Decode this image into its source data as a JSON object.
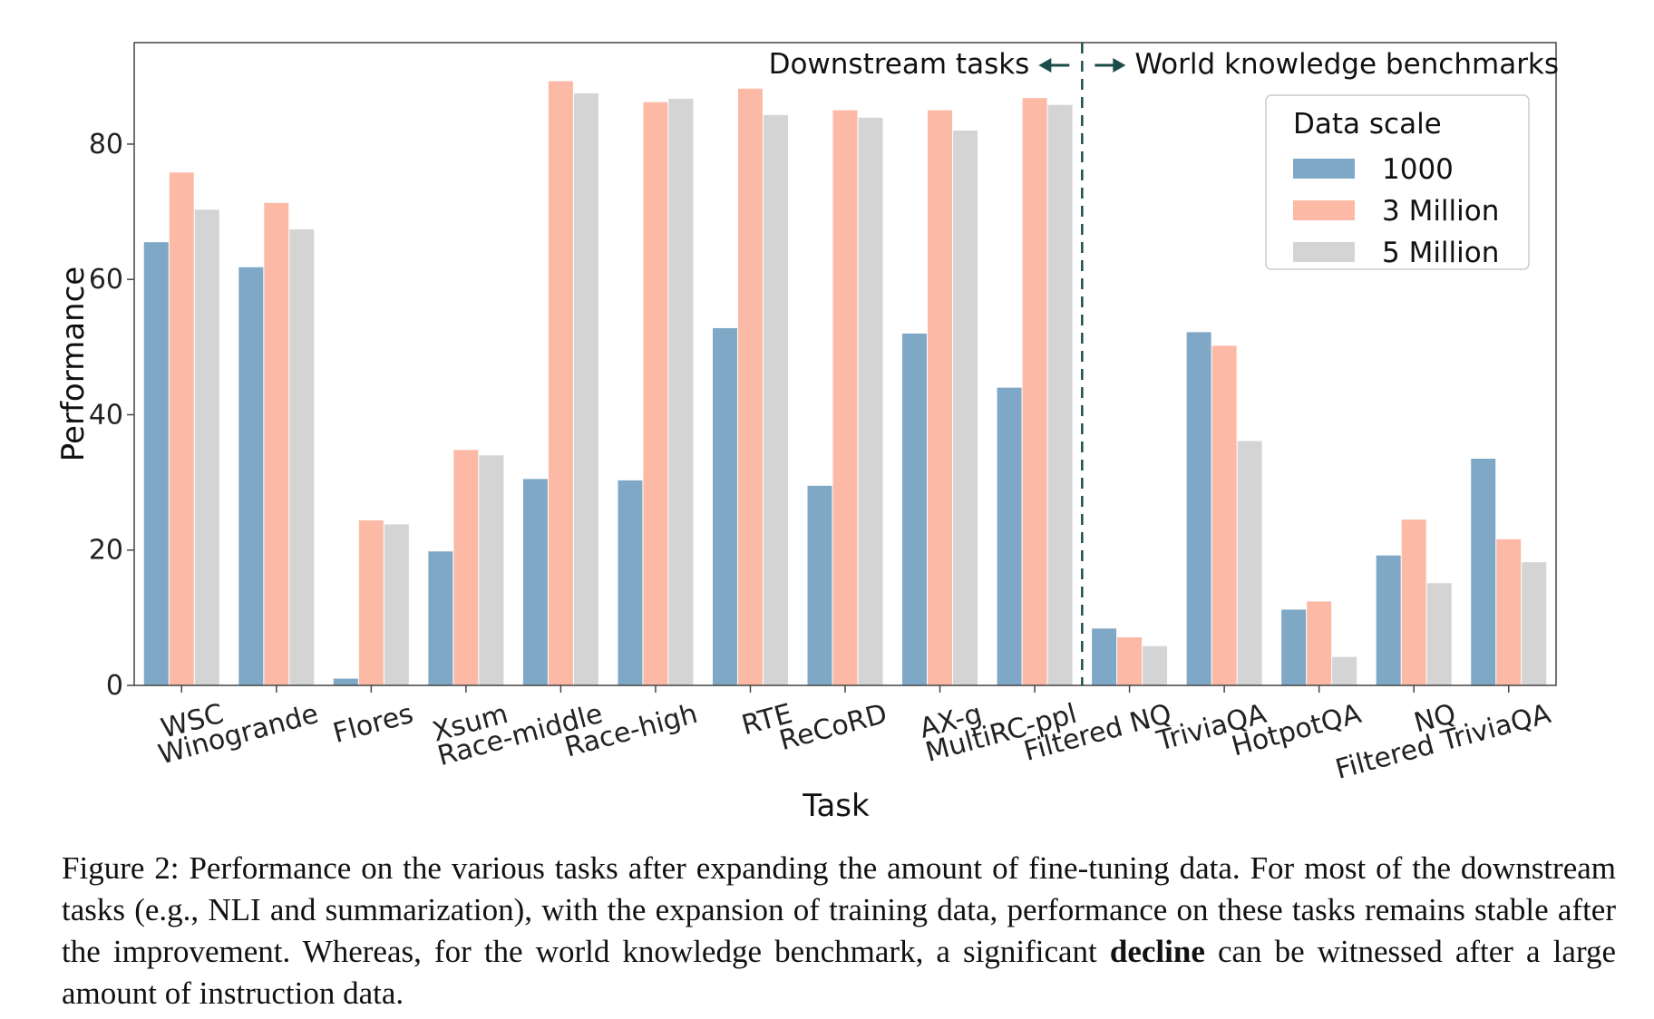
{
  "chart_data": {
    "type": "bar",
    "xlabel": "Task",
    "ylabel": "Performance",
    "ylim": [
      0,
      95
    ],
    "yticks": [
      0,
      20,
      40,
      60,
      80
    ],
    "categories": [
      "WSC",
      "Winogrande",
      "Flores",
      "Xsum",
      "Race-middle",
      "Race-high",
      "RTE",
      "ReCoRD",
      "AX-g",
      "MultiRC-ppl",
      "Filtered NQ",
      "TriviaQA",
      "HotpotQA",
      "NQ",
      "Filtered TriviaQA"
    ],
    "series": [
      {
        "name": "1000",
        "color": "#7fa8c7",
        "values": [
          65.5,
          61.8,
          1.0,
          19.8,
          30.5,
          30.3,
          52.8,
          29.5,
          52.0,
          44.0,
          8.4,
          52.2,
          11.2,
          19.2,
          33.5
        ]
      },
      {
        "name": "3 Million",
        "color": "#fcbaa6",
        "values": [
          75.8,
          71.3,
          24.4,
          34.8,
          89.3,
          86.2,
          88.2,
          85.0,
          85.0,
          86.8,
          7.1,
          50.2,
          12.4,
          24.5,
          21.6
        ]
      },
      {
        "name": "5 Million",
        "color": "#d4d4d4",
        "values": [
          70.3,
          67.4,
          23.8,
          34.0,
          87.5,
          86.7,
          84.3,
          83.9,
          82.0,
          85.8,
          5.8,
          36.1,
          4.2,
          15.1,
          18.2
        ]
      }
    ],
    "legend": {
      "title": "Data scale",
      "placement": "top-right"
    },
    "divider_after_index": 9,
    "annotations": {
      "left": "Downstream tasks",
      "right": "World knowledge benchmarks"
    },
    "grid": false
  },
  "caption": {
    "prefix": "Figure 2: Performance on the various tasks after expanding the amount of fine-tuning data. For most of the downstream tasks (e.g., NLI and summarization), with the expansion of training data, performance on these tasks remains stable after the improvement. Whereas, for the world knowledge benchmark, a significant ",
    "bold": "decline",
    "suffix": " can be witnessed after a large amount of instruction data."
  }
}
